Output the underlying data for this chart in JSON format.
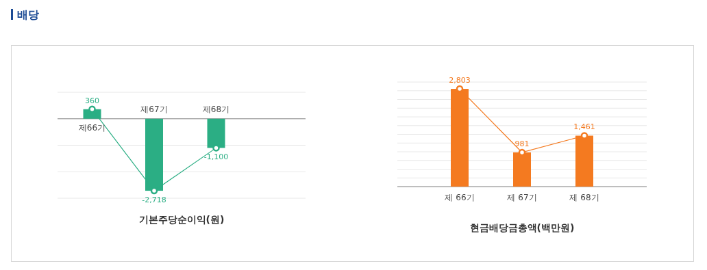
{
  "chart_data": [
    {
      "type": "bar",
      "title": "배당",
      "xlabel": "기본주당순이익(원)",
      "categories": [
        "제66기",
        "제67기",
        "제68기"
      ],
      "series": [
        {
          "color": "#2bae84",
          "values": [
            360,
            -2718,
            -1100
          ],
          "value_labels": [
            "360",
            "-2,718",
            "-1,100"
          ]
        },
        {
          "type": "line",
          "color": "#2bae84",
          "values": [
            360,
            -2718,
            -1100
          ]
        }
      ],
      "ylim": [
        -3000,
        1000
      ],
      "yticks": [
        {
          "value": -3000,
          "label": null
        },
        {
          "value": -2000,
          "label": null
        },
        {
          "value": -1000,
          "label": null
        },
        {
          "value": 0,
          "label": null
        },
        {
          "value": 1000,
          "label": null
        }
      ],
      "tick_labels": "x",
      "grid": "y",
      "marker": "circle",
      "line_style": "solid"
    },
    {
      "type": "bar",
      "xlabel": "현금배당금총액(백만원)",
      "categories": [
        "제 66기",
        "제 67기",
        "제 68기"
      ],
      "series": [
        {
          "color": "#f47a20",
          "values": [
            2803,
            981,
            1461
          ],
          "value_labels": [
            "2,803",
            "981",
            "1,461"
          ]
        },
        {
          "type": "line",
          "color": "#f47a20",
          "values": [
            2803,
            981,
            1461
          ]
        }
      ],
      "ylim": [
        0,
        3000
      ],
      "yticks": [
        {
          "value": 0,
          "label": null
        },
        {
          "value": 250,
          "label": null
        },
        {
          "value": 500,
          "label": null
        },
        {
          "value": 750,
          "label": null
        },
        {
          "value": 1000,
          "label": null
        },
        {
          "value": 1250,
          "label": null
        },
        {
          "value": 1500,
          "label": null
        },
        {
          "value": 1750,
          "label": null
        },
        {
          "value": 2000,
          "label": null
        },
        {
          "value": 2250,
          "label": null
        },
        {
          "value": 2500,
          "label": null
        },
        {
          "value": 2750,
          "label": null
        },
        {
          "value": 3000,
          "label": null
        }
      ],
      "tick_labels": "x",
      "grid": "y",
      "marker": "circle",
      "line_style": "solid"
    }
  ]
}
